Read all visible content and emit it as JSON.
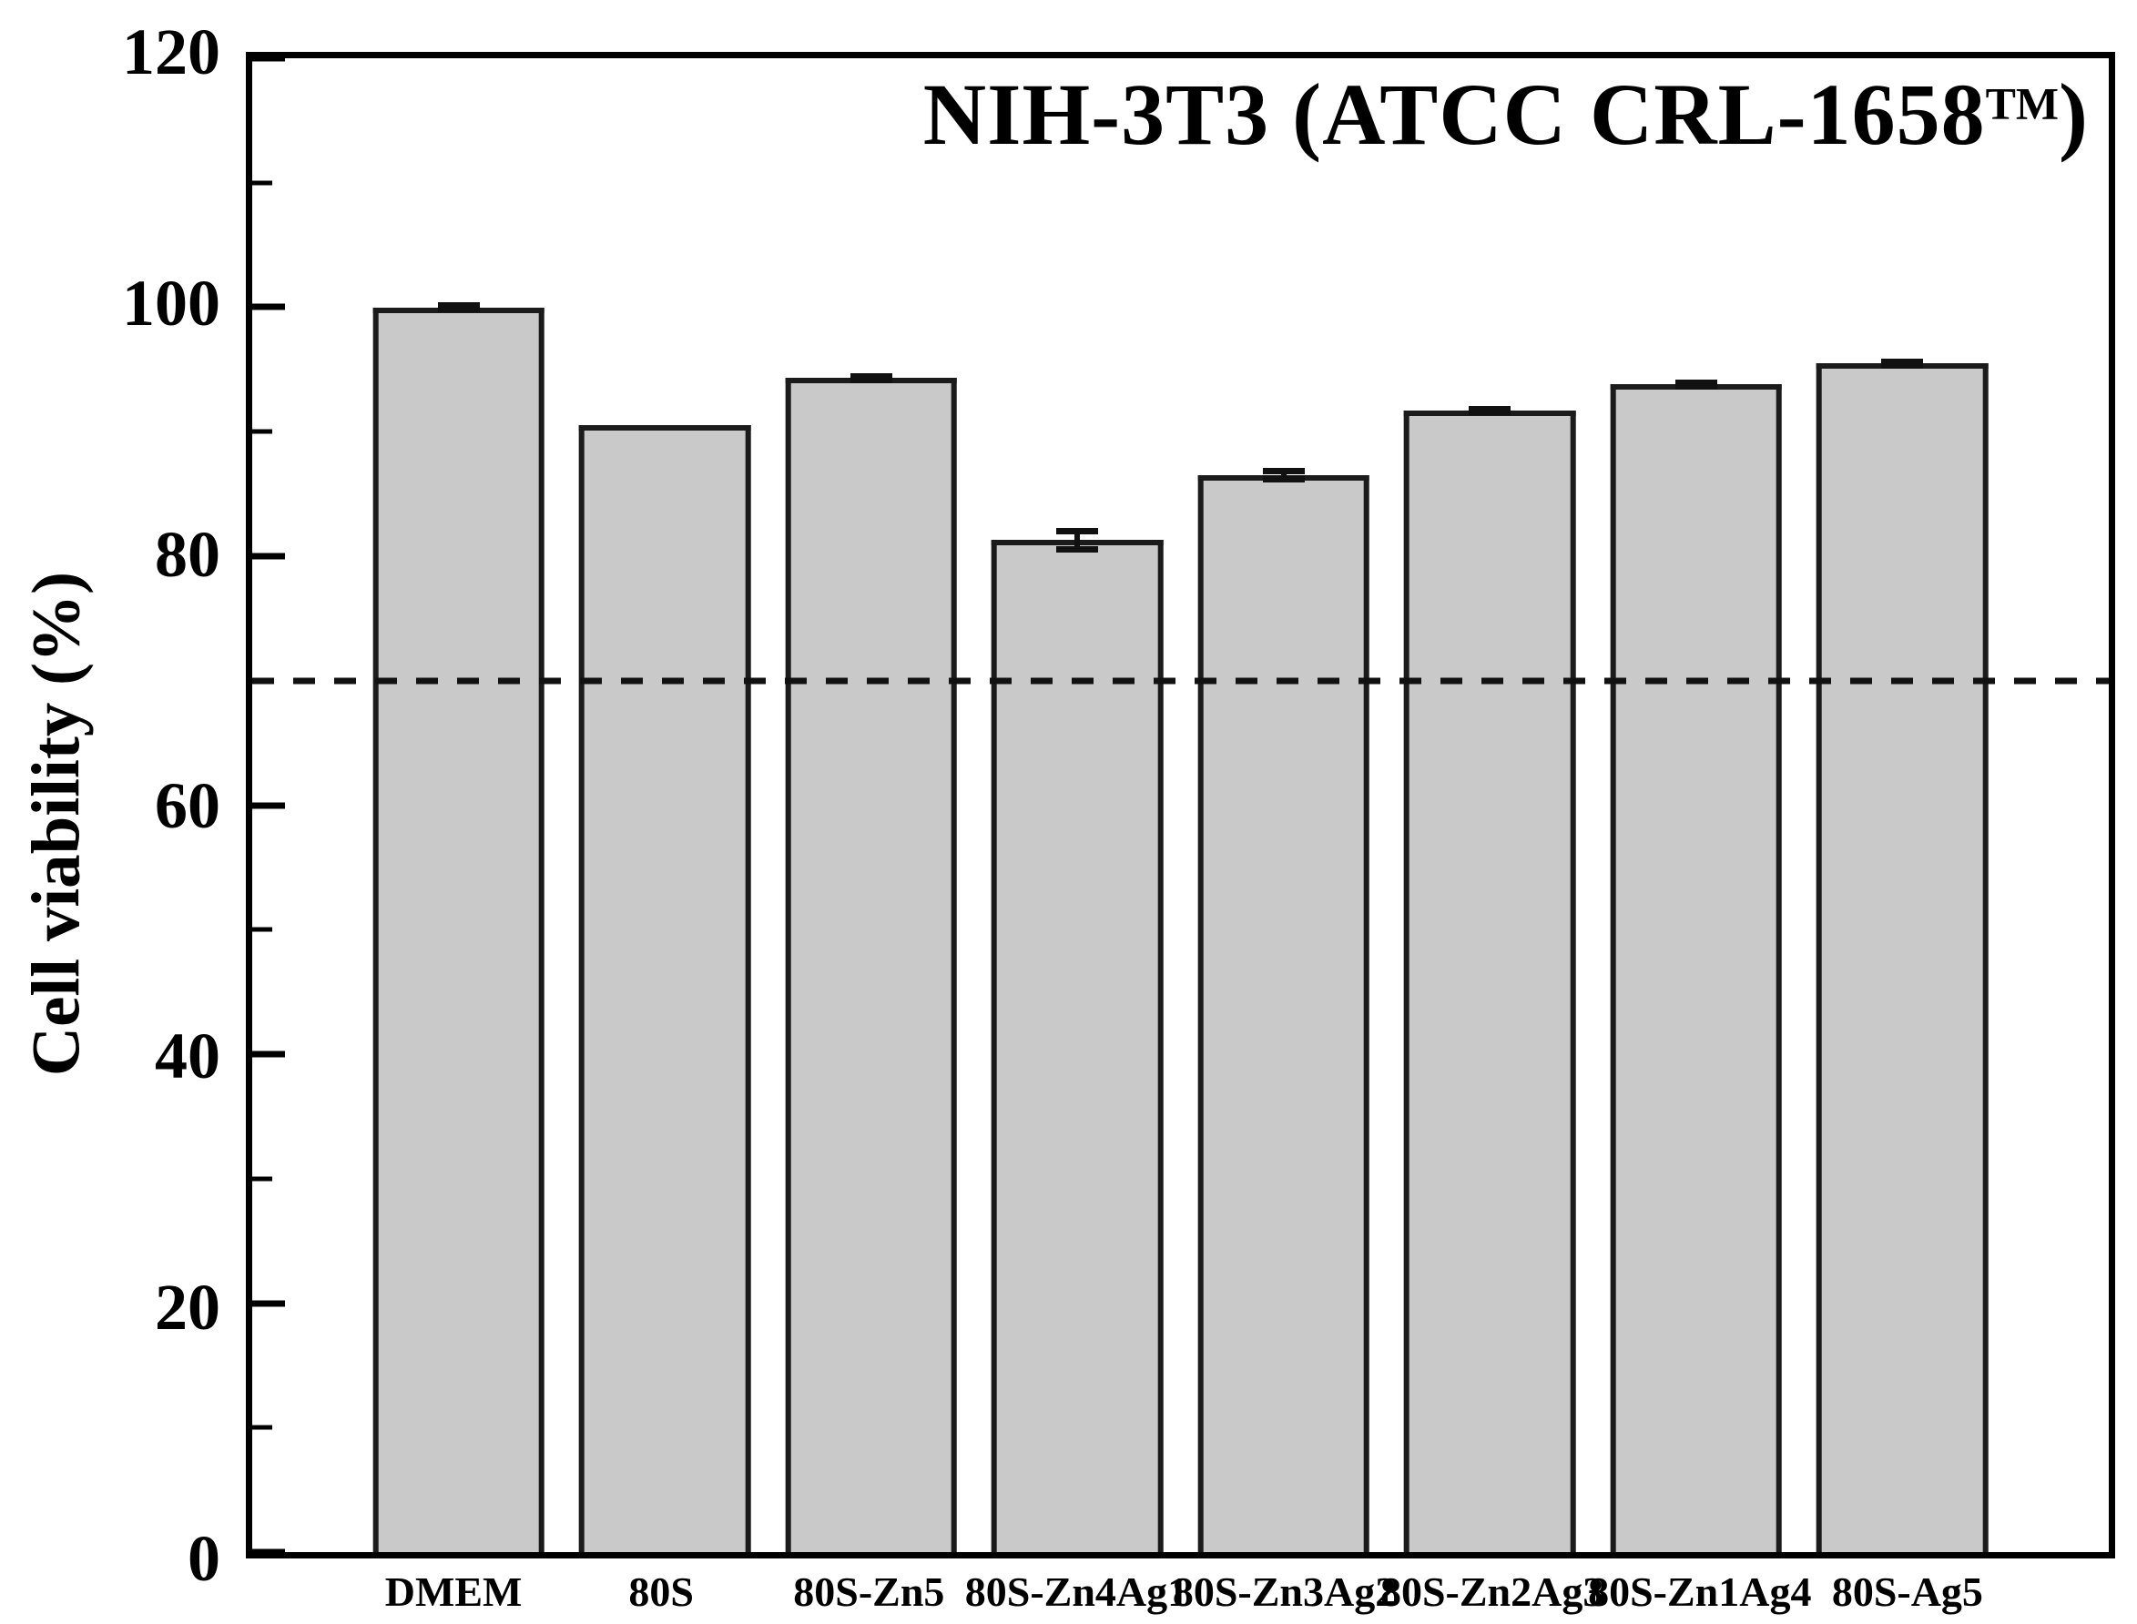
{
  "chart_data": {
    "type": "bar",
    "title_main": "NIH-3T3 (ATCC CRL-1658",
    "title_sup": "TM",
    "title_close": ")",
    "ylabel": "Cell viability (%)",
    "xlabel": "",
    "categories": [
      "DMEM",
      "80S",
      "80S-Zn5",
      "80S-Zn4Ag1",
      "80S-Zn3Ag2",
      "80S-Zn2Ag3",
      "80S-Zn1Ag4",
      "80S-Ag5"
    ],
    "values": [
      100,
      90.5,
      94.3,
      81.3,
      86.5,
      91.7,
      93.8,
      95.5
    ],
    "errors": [
      0.4,
      0,
      0.4,
      1.0,
      0.6,
      0.4,
      0.4,
      0.4
    ],
    "ylim": [
      0,
      120
    ],
    "yticks": [
      0,
      20,
      40,
      60,
      80,
      100,
      120
    ],
    "yticks_minor": [
      10,
      30,
      50,
      70,
      90,
      110
    ],
    "threshold_line": {
      "value": 70,
      "style": "dashed"
    },
    "grid": false,
    "legend": "none",
    "bar_fill_color": "#c9c9c9",
    "bar_border_color": "#1b1b1b",
    "axis_color": "#000000",
    "background_color": "#ffffff"
  }
}
